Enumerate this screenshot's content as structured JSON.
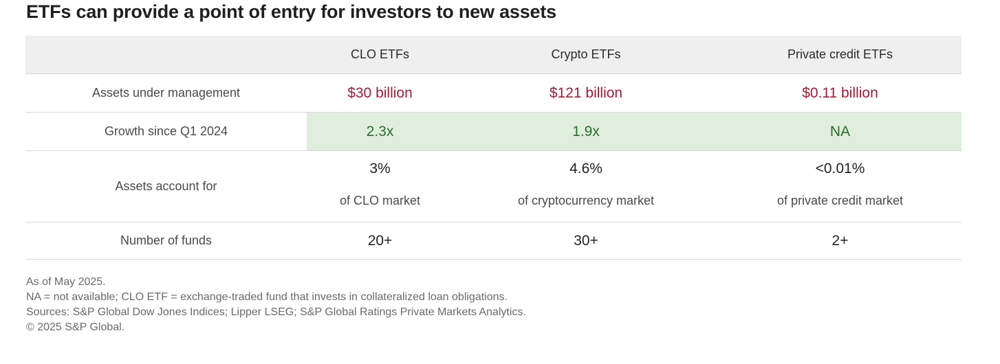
{
  "title": "ETFs can provide a point of entry for investors to new assets",
  "table": {
    "columns": [
      "",
      "CLO ETFs",
      "Crypto ETFs",
      "Private credit ETFs"
    ],
    "rows": {
      "aum": {
        "label": "Assets under management",
        "values": [
          "$30 billion",
          "$121 billion",
          "$0.11 billion"
        ]
      },
      "growth": {
        "label": "Growth since Q1 2024",
        "values": [
          "2.3x",
          "1.9x",
          "NA"
        ]
      },
      "share": {
        "label": "Assets account for",
        "values": [
          "3%",
          "4.6%",
          "<0.01%"
        ],
        "subtexts": [
          "of CLO market",
          "of cryptocurrency market",
          "of private credit market"
        ]
      },
      "funds": {
        "label": "Number of funds",
        "values": [
          "20+",
          "30+",
          "2+"
        ]
      }
    }
  },
  "notes": [
    "As of May 2025.",
    "NA = not available; CLO ETF = exchange-traded fund that invests in collateralized loan obligations.",
    "Sources: S&P Global Dow Jones Indices; Lipper LSEG; S&P Global Ratings Private Markets Analytics.",
    "© 2025 S&P Global."
  ],
  "colors": {
    "aum_value": "#9c1d36",
    "growth_value": "#2e6b2e",
    "growth_highlight": "#dfeedd",
    "header_bg": "#efefef"
  }
}
